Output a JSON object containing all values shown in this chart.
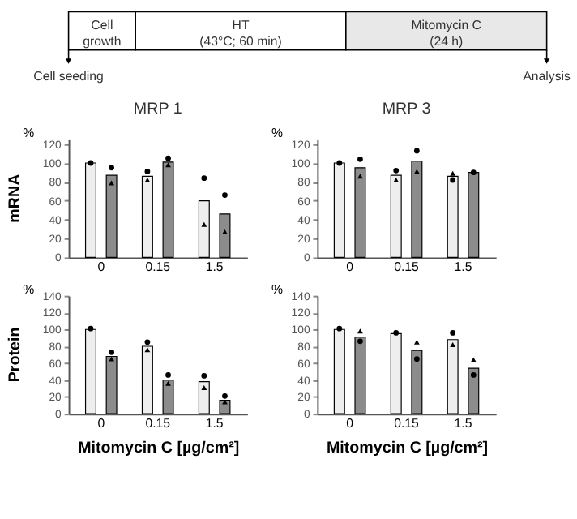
{
  "chart_data": [
    {
      "type": "other",
      "annotations": [
        "Cell\ngrowth",
        "HT\n(43°C; 60 min)",
        "Mitomycin C\n(24 h)",
        "Cell seeding",
        "Analysis"
      ]
    },
    {
      "type": "bar",
      "title": "MRP 1",
      "ylabel": "%",
      "annotations": [
        "mRNA"
      ],
      "categories": [
        "0",
        "0.15",
        "1.5"
      ],
      "ylim": [
        0,
        125
      ],
      "yticks": [
        0,
        20,
        40,
        60,
        80,
        100,
        120
      ],
      "grid": false,
      "series": [
        {
          "color": "#eeeeee",
          "values": [
            100,
            86,
            60
          ]
        },
        {
          "color": "#8c8c8c",
          "values": [
            87,
            101,
            46
          ]
        },
        {
          "type": "scatter",
          "marker": "circle",
          "color": "#000000",
          "values": [
            100,
            91,
            84
          ]
        },
        {
          "type": "scatter",
          "marker": "circle",
          "color": "#000000",
          "values": [
            95,
            105,
            66
          ]
        },
        {
          "type": "scatter",
          "marker": "triangle",
          "color": "#000000",
          "values": [
            null,
            82,
            35
          ]
        },
        {
          "type": "scatter",
          "marker": "triangle",
          "color": "#000000",
          "values": [
            79,
            98,
            27
          ]
        }
      ]
    },
    {
      "type": "bar",
      "title": "MRP 3",
      "ylabel": "%",
      "categories": [
        "0",
        "0.15",
        "1.5"
      ],
      "ylim": [
        0,
        125
      ],
      "yticks": [
        0,
        20,
        40,
        60,
        80,
        100,
        120
      ],
      "grid": false,
      "series": [
        {
          "color": "#eeeeee",
          "values": [
            100,
            87,
            86
          ]
        },
        {
          "color": "#8c8c8c",
          "values": [
            95,
            102,
            90
          ]
        },
        {
          "type": "scatter",
          "marker": "circle",
          "color": "#000000",
          "values": [
            100,
            92,
            82
          ]
        },
        {
          "type": "scatter",
          "marker": "circle",
          "color": "#000000",
          "values": [
            104,
            113,
            90
          ]
        },
        {
          "type": "scatter",
          "marker": "triangle",
          "color": "#000000",
          "values": [
            null,
            82,
            89
          ]
        },
        {
          "type": "scatter",
          "marker": "triangle",
          "color": "#000000",
          "values": [
            86,
            91,
            null
          ]
        }
      ]
    },
    {
      "type": "bar",
      "ylabel": "%",
      "xlabel": "Mitomycin C [µg/cm²]",
      "annotations": [
        "Protein"
      ],
      "categories": [
        "0",
        "0.15",
        "1.5"
      ],
      "ylim": [
        0,
        140
      ],
      "yticks": [
        0,
        20,
        40,
        60,
        80,
        100,
        120,
        140
      ],
      "grid": false,
      "series": [
        {
          "color": "#eeeeee",
          "values": [
            100,
            80,
            38
          ]
        },
        {
          "color": "#8c8c8c",
          "values": [
            68,
            40,
            16
          ]
        },
        {
          "type": "scatter",
          "marker": "circle",
          "color": "#000000",
          "values": [
            101,
            85,
            45
          ]
        },
        {
          "type": "scatter",
          "marker": "circle",
          "color": "#000000",
          "values": [
            73,
            46,
            21
          ]
        },
        {
          "type": "scatter",
          "marker": "triangle",
          "color": "#000000",
          "values": [
            null,
            76,
            31
          ]
        },
        {
          "type": "scatter",
          "marker": "triangle",
          "color": "#000000",
          "values": [
            65,
            36,
            14
          ]
        }
      ]
    },
    {
      "type": "bar",
      "ylabel": "%",
      "xlabel": "Mitomycin C [µg/cm²]",
      "categories": [
        "0",
        "0.15",
        "1.5"
      ],
      "ylim": [
        0,
        140
      ],
      "yticks": [
        0,
        20,
        40,
        60,
        80,
        100,
        120,
        140
      ],
      "grid": false,
      "series": [
        {
          "color": "#eeeeee",
          "values": [
            100,
            95,
            88
          ]
        },
        {
          "color": "#8c8c8c",
          "values": [
            91,
            75,
            54
          ]
        },
        {
          "type": "scatter",
          "marker": "circle",
          "color": "#000000",
          "values": [
            101,
            96,
            96
          ]
        },
        {
          "type": "scatter",
          "marker": "circle",
          "color": "#000000",
          "values": [
            86,
            65,
            46
          ]
        },
        {
          "type": "scatter",
          "marker": "triangle",
          "color": "#000000",
          "values": [
            null,
            null,
            82
          ]
        },
        {
          "type": "scatter",
          "marker": "triangle",
          "color": "#000000",
          "values": [
            98,
            85,
            64
          ]
        }
      ]
    }
  ]
}
